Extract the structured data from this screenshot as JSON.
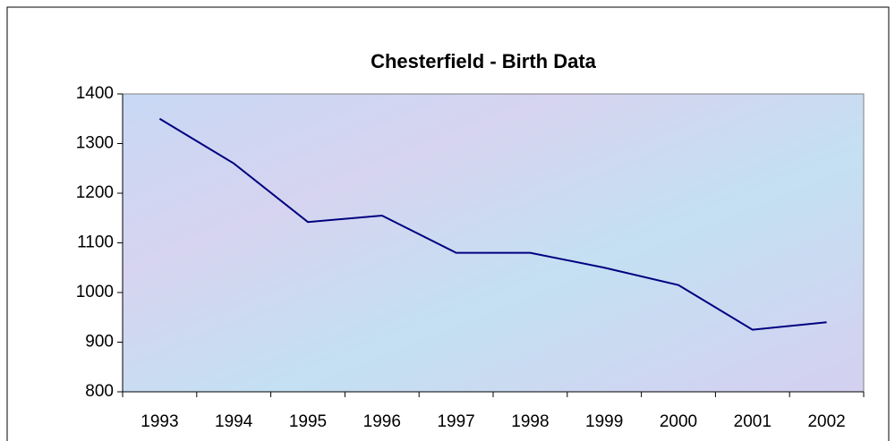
{
  "chart_data": {
    "type": "line",
    "title": "Chesterfield - Birth Data",
    "categories": [
      "1993",
      "1994",
      "1995",
      "1996",
      "1997",
      "1998",
      "1999",
      "2000",
      "2001",
      "2002"
    ],
    "series": [
      {
        "name": null,
        "color": "#000080",
        "values": [
          1350,
          1260,
          1142,
          1155,
          1080,
          1080,
          1050,
          1015,
          925,
          940
        ]
      }
    ],
    "ylim": [
      800,
      1400
    ],
    "yticks": [
      800,
      900,
      1000,
      1100,
      1200,
      1300,
      1400
    ]
  }
}
